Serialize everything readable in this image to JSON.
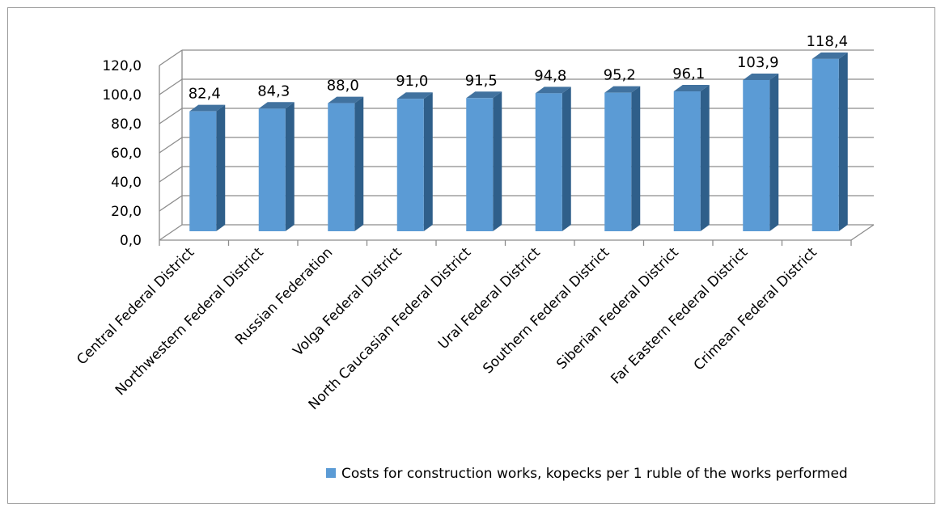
{
  "chart_data": {
    "type": "bar",
    "categories": [
      "Central Federal District",
      "Northwestern Federal District",
      "Russian Federation",
      "Volga Federal District",
      "North Caucasian Federal District",
      "Ural Federal District",
      "Southern Federal District",
      "Siberian Federal District",
      "Far Eastern Federal District",
      "Crimean Federal District"
    ],
    "series": [
      {
        "name": "Costs for construction works, kopecks per 1 ruble of the works performed",
        "values": [
          82.4,
          84.3,
          88.0,
          91.0,
          91.5,
          94.8,
          95.2,
          96.1,
          103.9,
          118.4
        ],
        "value_labels": [
          "82,4",
          "84,3",
          "88,0",
          "91,0",
          "91,5",
          "94,8",
          "95,2",
          "96,1",
          "103,9",
          "118,4"
        ]
      }
    ],
    "ylim": [
      0,
      120
    ],
    "yticks": [
      0,
      20,
      40,
      60,
      80,
      100,
      120
    ],
    "ytick_labels": [
      "0,0",
      "20,0",
      "40,0",
      "60,0",
      "80,0",
      "100,0",
      "120,0"
    ],
    "title": "",
    "xlabel": "",
    "ylabel": "",
    "grid": true,
    "three_d": true,
    "legend_position": "bottom",
    "colors": {
      "bar_front": "#5b9bd5",
      "bar_side": "#2f5f8a",
      "bar_top": "#41729f",
      "grid": "#8c8c8c",
      "text": "#000000"
    }
  }
}
